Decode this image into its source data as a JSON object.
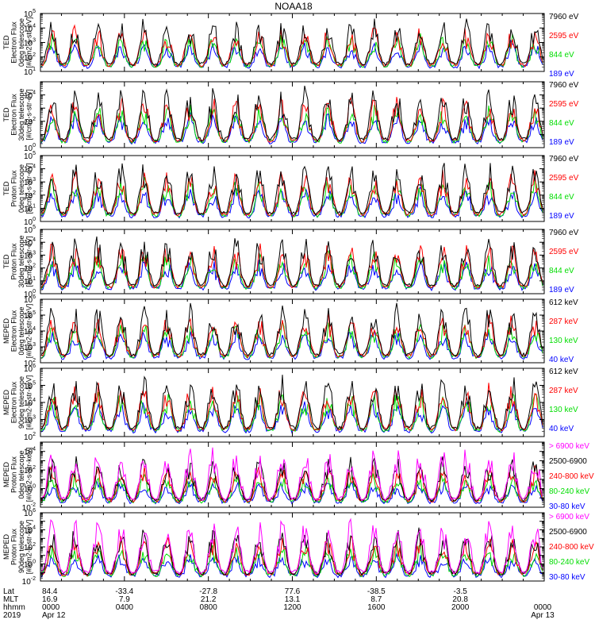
{
  "title": "NOAA18",
  "chart_data": [
    {
      "type": "line",
      "instrument": "TED",
      "ylabel": [
        "TED",
        "Electron Flux",
        "0deg telescope",
        "[#/cm2-s-str-eV]"
      ],
      "ylim": [
        10,
        100000
      ],
      "yscale": "log",
      "yticks": [
        {
          "label": "10",
          "exp": "1"
        },
        {
          "label": "10",
          "exp": "2"
        },
        {
          "label": "10",
          "exp": "3"
        },
        {
          "label": "10",
          "exp": "4"
        },
        {
          "label": "10",
          "exp": "5"
        }
      ],
      "series": [
        {
          "name": "7960 eV",
          "color": "#000000"
        },
        {
          "name": "2595 eV",
          "color": "#ff0000"
        },
        {
          "name": "844 eV",
          "color": "#00dd00"
        },
        {
          "name": "189 eV",
          "color": "#0000ff"
        }
      ]
    },
    {
      "type": "line",
      "instrument": "TED",
      "ylabel": [
        "TED",
        "Electron Flux",
        "30deg telescope",
        "[#/cm2-s-str-eV]"
      ],
      "ylim": [
        1,
        100000
      ],
      "yscale": "log",
      "yticks": [
        {
          "label": "10",
          "exp": "0"
        },
        {
          "label": "10",
          "exp": "2"
        },
        {
          "label": "10",
          "exp": "4"
        }
      ],
      "series": [
        {
          "name": "7960 eV",
          "color": "#000000"
        },
        {
          "name": "2595 eV",
          "color": "#ff0000"
        },
        {
          "name": "844 eV",
          "color": "#00dd00"
        },
        {
          "name": "189 eV",
          "color": "#0000ff"
        }
      ]
    },
    {
      "type": "line",
      "instrument": "TED",
      "ylabel": [
        "TED",
        "Proton Flux",
        "0deg telescope",
        "[#/cm2-s-str-eV]"
      ],
      "ylim": [
        1,
        100000
      ],
      "yscale": "log",
      "yticks": [
        {
          "label": "10",
          "exp": "0"
        },
        {
          "label": "10",
          "exp": "1"
        },
        {
          "label": "10",
          "exp": "2"
        },
        {
          "label": "10",
          "exp": "3"
        },
        {
          "label": "10",
          "exp": "4"
        },
        {
          "label": "10",
          "exp": "5"
        }
      ],
      "series": [
        {
          "name": "7960 eV",
          "color": "#000000"
        },
        {
          "name": "2595 eV",
          "color": "#ff0000"
        },
        {
          "name": "844 eV",
          "color": "#00dd00"
        },
        {
          "name": "189 eV",
          "color": "#0000ff"
        }
      ]
    },
    {
      "type": "line",
      "instrument": "TED",
      "ylabel": [
        "TED",
        "Proton Flux",
        "30deg telescope",
        "[#/cm2-s-str-eV]"
      ],
      "ylim": [
        1,
        100000
      ],
      "yscale": "log",
      "yticks": [
        {
          "label": "10",
          "exp": "0"
        },
        {
          "label": "10",
          "exp": "1"
        },
        {
          "label": "10",
          "exp": "2"
        },
        {
          "label": "10",
          "exp": "3"
        },
        {
          "label": "10",
          "exp": "4"
        },
        {
          "label": "10",
          "exp": "5"
        }
      ],
      "series": [
        {
          "name": "7960 eV",
          "color": "#000000"
        },
        {
          "name": "2595 eV",
          "color": "#ff0000"
        },
        {
          "name": "844 eV",
          "color": "#00dd00"
        },
        {
          "name": "189 eV",
          "color": "#0000ff"
        }
      ]
    },
    {
      "type": "line",
      "instrument": "MEPED",
      "ylabel": [
        "MEPED",
        "Electron Flux",
        "0deg telescope",
        "[#/cm2-s-str-keV]"
      ],
      "ylim": [
        100,
        1000000
      ],
      "yscale": "log",
      "yticks": [
        {
          "label": "10",
          "exp": "2"
        },
        {
          "label": "10",
          "exp": "3"
        },
        {
          "label": "10",
          "exp": "4"
        },
        {
          "label": "10",
          "exp": "5"
        },
        {
          "label": "10",
          "exp": "6"
        }
      ],
      "series": [
        {
          "name": "612 keV",
          "color": "#000000"
        },
        {
          "name": "287 keV",
          "color": "#ff0000"
        },
        {
          "name": "130 keV",
          "color": "#00dd00"
        },
        {
          "name": "40 keV",
          "color": "#0000ff"
        }
      ]
    },
    {
      "type": "line",
      "instrument": "MEPED",
      "ylabel": [
        "MEPED",
        "Electron Flux",
        "90deg telescope",
        "[#/cm2-s-str-keV]"
      ],
      "ylim": [
        100,
        1000000
      ],
      "yscale": "log",
      "yticks": [
        {
          "label": "10",
          "exp": "2"
        },
        {
          "label": "10",
          "exp": "3"
        },
        {
          "label": "10",
          "exp": "4"
        },
        {
          "label": "10",
          "exp": "5"
        },
        {
          "label": "10",
          "exp": "6"
        }
      ],
      "series": [
        {
          "name": "612 keV",
          "color": "#000000"
        },
        {
          "name": "287 keV",
          "color": "#ff0000"
        },
        {
          "name": "130 keV",
          "color": "#00dd00"
        },
        {
          "name": "40 keV",
          "color": "#0000ff"
        }
      ]
    },
    {
      "type": "line",
      "instrument": "MEPED",
      "ylabel": [
        "MEPED",
        "Proton Flux",
        "0deg telescope",
        "[#/cm2-s-str-keV]"
      ],
      "ylim": [
        0.01,
        100000
      ],
      "yscale": "log",
      "yticks": [
        {
          "label": "10",
          "exp": "-2"
        },
        {
          "label": "10",
          "exp": "0"
        },
        {
          "label": "10",
          "exp": "2"
        },
        {
          "label": "10",
          "exp": "4"
        }
      ],
      "series": [
        {
          "name": "> 6900 keV",
          "color": "#ff00ff"
        },
        {
          "name": "2500-6900",
          "color": "#000000"
        },
        {
          "name": "240-800 keV",
          "color": "#ff0000"
        },
        {
          "name": "80-240 keV",
          "color": "#00dd00"
        },
        {
          "name": "30-80 keV",
          "color": "#0000ff"
        }
      ]
    },
    {
      "type": "line",
      "instrument": "MEPED",
      "ylabel": [
        "MEPED",
        "Proton Flux",
        "90deg telescope",
        "[#/cm2-s-str-keV]"
      ],
      "ylim": [
        0.01,
        1000000
      ],
      "yscale": "log",
      "yticks": [
        {
          "label": "10",
          "exp": "-2"
        },
        {
          "label": "10",
          "exp": "0"
        },
        {
          "label": "10",
          "exp": "2"
        },
        {
          "label": "10",
          "exp": "4"
        },
        {
          "label": "10",
          "exp": "6"
        }
      ],
      "series": [
        {
          "name": "> 6900 keV",
          "color": "#ff00ff"
        },
        {
          "name": "2500-6900",
          "color": "#000000"
        },
        {
          "name": "240-800 keV",
          "color": "#ff0000"
        },
        {
          "name": "80-240 keV",
          "color": "#00dd00"
        },
        {
          "name": "30-80 keV",
          "color": "#0000ff"
        }
      ]
    }
  ],
  "x_axis": {
    "row_labels": [
      "Lat",
      "MLT",
      "hhmm",
      "2019"
    ],
    "ticks": [
      {
        "hour": 0,
        "lat": "84.4",
        "mlt": "16.9",
        "hhmm": "0000",
        "date": "Apr 12"
      },
      {
        "hour": 4,
        "lat": "-33.4",
        "mlt": "7.9",
        "hhmm": "0400",
        "date": ""
      },
      {
        "hour": 8,
        "lat": "-27.8",
        "mlt": "21.2",
        "hhmm": "0800",
        "date": ""
      },
      {
        "hour": 12,
        "lat": "77.6",
        "mlt": "13.1",
        "hhmm": "1200",
        "date": ""
      },
      {
        "hour": 16,
        "lat": "-38.5",
        "mlt": "8.7",
        "hhmm": "1600",
        "date": ""
      },
      {
        "hour": 20,
        "lat": "-3.5",
        "mlt": "20.8",
        "hhmm": "2000",
        "date": ""
      },
      {
        "hour": 24,
        "lat": "",
        "mlt": "",
        "hhmm": "0000",
        "date": "Apr 13"
      }
    ]
  }
}
